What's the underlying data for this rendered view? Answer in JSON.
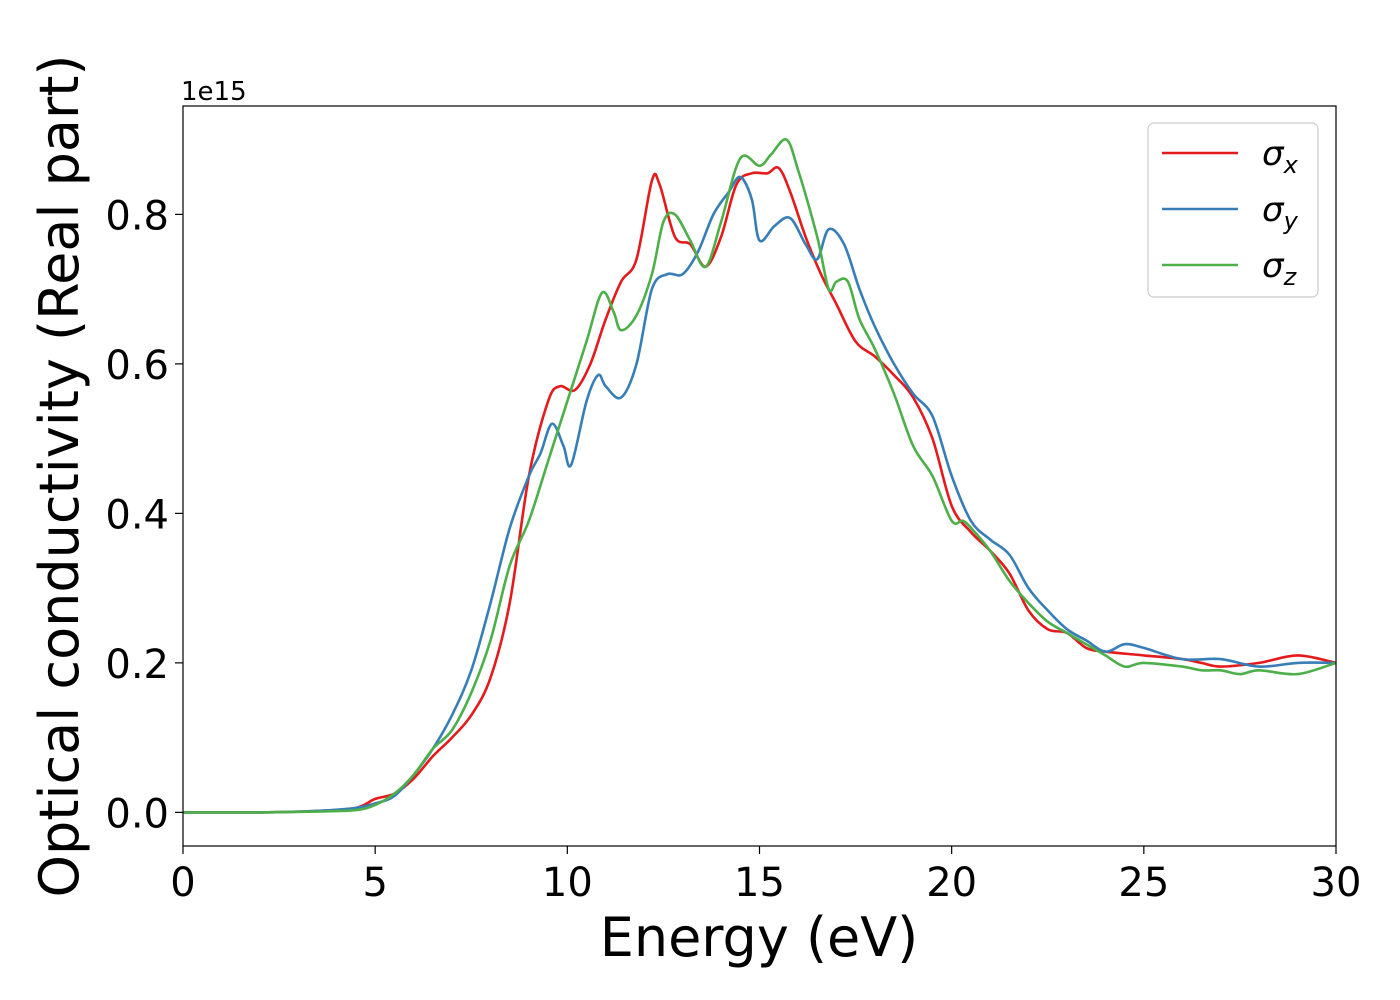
{
  "chart_data": {
    "type": "line",
    "xlabel": "Energy (eV)",
    "ylabel": "Optical conductivity (Real part)",
    "y_offset_text": "1e15",
    "xlim": [
      0,
      30
    ],
    "ylim": [
      -0.045,
      0.945
    ],
    "x_ticks": [
      0,
      5,
      10,
      15,
      20,
      25,
      30
    ],
    "x_tick_labels": [
      "0",
      "5",
      "10",
      "15",
      "20",
      "25",
      "30"
    ],
    "y_ticks": [
      0.0,
      0.2,
      0.4,
      0.6,
      0.8
    ],
    "y_tick_labels": [
      "0.0",
      "0.2",
      "0.4",
      "0.6",
      "0.8"
    ],
    "grid": false,
    "legend_position": "upper right",
    "series": [
      {
        "name": "σx",
        "base": "σ",
        "sub": "x",
        "color": "#e41a1c",
        "x": [
          0,
          2,
          3.5,
          4.5,
          5,
          5.5,
          6,
          6.5,
          7,
          7.5,
          8,
          8.5,
          9,
          9.5,
          9.8,
          10.2,
          10.6,
          11,
          11.4,
          11.8,
          12.2,
          12.4,
          12.8,
          13.2,
          13.6,
          14,
          14.4,
          14.8,
          15.2,
          15.5,
          15.8,
          16.2,
          16.6,
          17,
          17.5,
          18,
          18.5,
          19,
          19.5,
          20,
          20.5,
          21,
          21.5,
          22,
          22.5,
          23,
          23.5,
          24,
          25,
          26,
          26.5,
          27,
          28,
          29,
          30
        ],
        "y": [
          0,
          0,
          0.002,
          0.006,
          0.018,
          0.025,
          0.045,
          0.075,
          0.1,
          0.13,
          0.18,
          0.28,
          0.45,
          0.55,
          0.57,
          0.565,
          0.6,
          0.66,
          0.71,
          0.74,
          0.845,
          0.84,
          0.77,
          0.76,
          0.73,
          0.77,
          0.84,
          0.855,
          0.855,
          0.862,
          0.83,
          0.77,
          0.72,
          0.68,
          0.63,
          0.61,
          0.585,
          0.555,
          0.5,
          0.41,
          0.375,
          0.35,
          0.32,
          0.27,
          0.245,
          0.24,
          0.22,
          0.215,
          0.21,
          0.205,
          0.2,
          0.195,
          0.2,
          0.21,
          0.2
        ]
      },
      {
        "name": "σy",
        "base": "σ",
        "sub": "y",
        "color": "#377eb8",
        "x": [
          0,
          2,
          3.5,
          4.5,
          5,
          5.5,
          6,
          6.5,
          7,
          7.5,
          8,
          8.5,
          9,
          9.3,
          9.6,
          9.9,
          10.1,
          10.5,
          10.8,
          11,
          11.4,
          11.8,
          12.2,
          12.6,
          13,
          13.4,
          13.8,
          14.2,
          14.5,
          14.8,
          15,
          15.4,
          15.8,
          16.2,
          16.5,
          16.8,
          17.2,
          17.6,
          18,
          18.5,
          19,
          19.5,
          20,
          20.5,
          21,
          21.5,
          22,
          22.5,
          23,
          23.5,
          24,
          24.5,
          25,
          26,
          27,
          28,
          29,
          30
        ],
        "y": [
          0,
          0,
          0.002,
          0.006,
          0.012,
          0.022,
          0.05,
          0.085,
          0.13,
          0.19,
          0.28,
          0.38,
          0.45,
          0.48,
          0.52,
          0.49,
          0.465,
          0.55,
          0.585,
          0.57,
          0.555,
          0.6,
          0.7,
          0.72,
          0.72,
          0.75,
          0.8,
          0.83,
          0.85,
          0.82,
          0.765,
          0.785,
          0.795,
          0.76,
          0.74,
          0.78,
          0.76,
          0.7,
          0.65,
          0.6,
          0.56,
          0.53,
          0.45,
          0.39,
          0.365,
          0.345,
          0.3,
          0.27,
          0.245,
          0.23,
          0.215,
          0.225,
          0.22,
          0.205,
          0.205,
          0.195,
          0.2,
          0.2
        ]
      },
      {
        "name": "σz",
        "base": "σ",
        "sub": "z",
        "color": "#4daf4a",
        "x": [
          0,
          2,
          3.5,
          4.5,
          5,
          5.5,
          6,
          6.5,
          7,
          7.5,
          8,
          8.5,
          9,
          9.5,
          10,
          10.5,
          10.9,
          11.2,
          11.4,
          11.8,
          12.2,
          12.5,
          12.8,
          13.2,
          13.6,
          14,
          14.5,
          15,
          15.3,
          15.7,
          16,
          16.5,
          16.8,
          17,
          17.3,
          17.6,
          18,
          18.5,
          19,
          19.5,
          20,
          20.3,
          20.6,
          21,
          21.5,
          22,
          22.5,
          23,
          23.5,
          24,
          24.5,
          25,
          26,
          26.5,
          27,
          27.5,
          28,
          29,
          30
        ],
        "y": [
          0,
          0,
          0.001,
          0.003,
          0.01,
          0.025,
          0.05,
          0.085,
          0.11,
          0.16,
          0.23,
          0.33,
          0.39,
          0.47,
          0.55,
          0.63,
          0.695,
          0.67,
          0.645,
          0.665,
          0.72,
          0.79,
          0.8,
          0.765,
          0.73,
          0.79,
          0.875,
          0.865,
          0.88,
          0.9,
          0.86,
          0.77,
          0.7,
          0.71,
          0.71,
          0.66,
          0.62,
          0.56,
          0.49,
          0.45,
          0.39,
          0.39,
          0.375,
          0.35,
          0.31,
          0.28,
          0.255,
          0.24,
          0.225,
          0.21,
          0.195,
          0.2,
          0.195,
          0.19,
          0.19,
          0.185,
          0.19,
          0.185,
          0.2
        ]
      }
    ]
  }
}
